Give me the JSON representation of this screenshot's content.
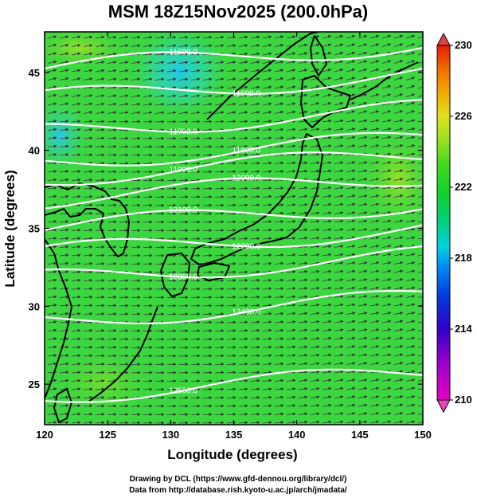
{
  "title": "MSM 18Z15Nov2025 (200.0hPa)",
  "x_axis": {
    "label": "Longitude (degrees)",
    "ticks": [
      "120",
      "125",
      "130",
      "135",
      "140",
      "145",
      "150"
    ],
    "range": [
      120,
      150
    ]
  },
  "y_axis": {
    "label": "Latitude  (degrees)",
    "ticks": [
      "25",
      "30",
      "35",
      "40",
      "45"
    ],
    "range": [
      22.4,
      47.6
    ]
  },
  "colorbar": {
    "ticks": [
      "210",
      "214",
      "218",
      "222",
      "226",
      "230"
    ],
    "range": [
      210,
      230
    ],
    "colors": [
      "#e000c0",
      "#a000c8",
      "#3000c8",
      "#0040e0",
      "#0090f0",
      "#00d0e0",
      "#00d080",
      "#10d030",
      "#40d820",
      "#a0e020",
      "#e0e020",
      "#f0b000",
      "#f07000",
      "#e02000"
    ]
  },
  "contours": [
    {
      "label": "11600.0",
      "lat": 46.0
    },
    {
      "label": "11600.0",
      "lat": 44.1
    },
    {
      "label": "11700.0",
      "lat": 41.9
    },
    {
      "label": "11800.0",
      "lat": 40.0
    },
    {
      "label": "11900.0",
      "lat": 39.0
    },
    {
      "label": "12000.0",
      "lat": 37.6
    },
    {
      "label": "12100.0",
      "lat": 35.8
    },
    {
      "label": "12200.0",
      "lat": 34.2
    },
    {
      "label": "12300.0",
      "lat": 32.5
    },
    {
      "label": "12400.0",
      "lat": 29.8
    },
    {
      "label": "12500.0",
      "lat": 25.0
    }
  ],
  "credits": {
    "line1": "Drawing by DCL (https://www.gfd-dennou.org/library/dcl/)",
    "line2": "Data from http://database.rish.kyoto-u.ac.jp/arch/jmadata/"
  }
}
